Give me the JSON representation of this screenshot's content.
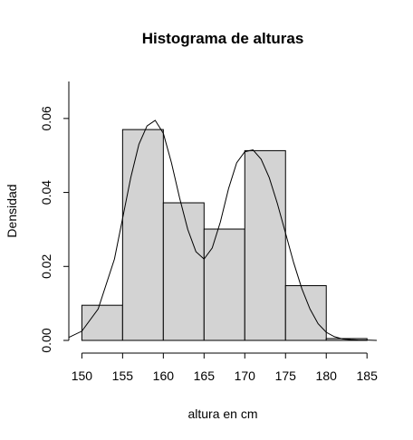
{
  "chart_data": {
    "type": "histogram",
    "title": "Histograma de alturas",
    "xlabel": "altura en cm",
    "ylabel": "Densidad",
    "xlim": [
      148.4,
      186.2
    ],
    "ylim": [
      0,
      0.07
    ],
    "x_ticks": [
      150,
      155,
      160,
      165,
      170,
      175,
      180,
      185
    ],
    "y_ticks": [
      0.0,
      0.02,
      0.04,
      0.06
    ],
    "y_tick_labels": [
      "0.00",
      "0.02",
      "0.04",
      "0.06"
    ],
    "bins": [
      {
        "start": 150,
        "end": 155,
        "density": 0.0095
      },
      {
        "start": 155,
        "end": 160,
        "density": 0.057
      },
      {
        "start": 160,
        "end": 165,
        "density": 0.0372
      },
      {
        "start": 165,
        "end": 170,
        "density": 0.0301
      },
      {
        "start": 170,
        "end": 175,
        "density": 0.0513
      },
      {
        "start": 175,
        "end": 180,
        "density": 0.0148
      },
      {
        "start": 180,
        "end": 185,
        "density": 0.0005
      }
    ],
    "density_curve": {
      "x": [
        148.4,
        150,
        152,
        154,
        155,
        156,
        157,
        158,
        159,
        160,
        161,
        162,
        163,
        164,
        165,
        166,
        167,
        168,
        169,
        170,
        171,
        172,
        173,
        174,
        175,
        176,
        177,
        178,
        179,
        180,
        181,
        182,
        183,
        184,
        185,
        186.2
      ],
      "y": [
        0.0008,
        0.0025,
        0.0085,
        0.022,
        0.033,
        0.044,
        0.053,
        0.058,
        0.0595,
        0.056,
        0.048,
        0.0385,
        0.03,
        0.024,
        0.022,
        0.025,
        0.032,
        0.041,
        0.048,
        0.051,
        0.0515,
        0.049,
        0.044,
        0.037,
        0.029,
        0.021,
        0.014,
        0.0085,
        0.0045,
        0.0022,
        0.001,
        0.0004,
        0.0002,
        0.0001,
        0.0001,
        0.0
      ]
    }
  }
}
